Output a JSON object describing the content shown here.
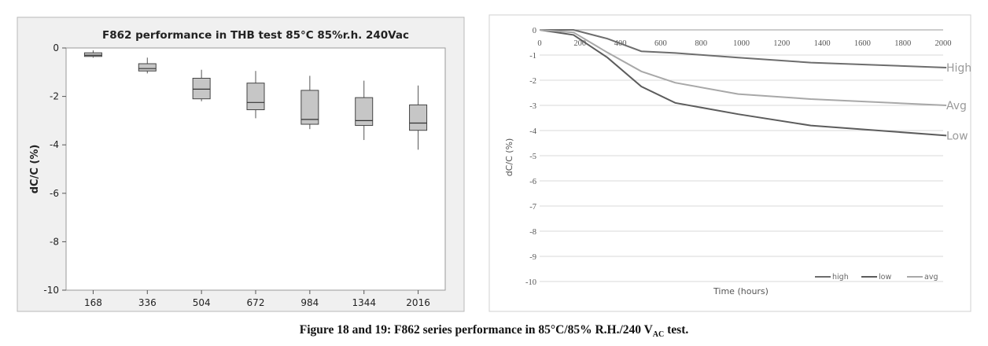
{
  "chart_data": [
    {
      "type": "box",
      "title": "F862 performance in THB test 85°C 85%r.h. 240Vac",
      "ylabel": "dC/C (%)",
      "xlabel": "",
      "ylim": [
        -10,
        0
      ],
      "yticks": [
        0,
        -2,
        -4,
        -6,
        -8,
        -10
      ],
      "yticklabels": [
        "0",
        "-2",
        "-4",
        "-6",
        "-8",
        "-10"
      ],
      "categories": [
        "168",
        "336",
        "504",
        "672",
        "984",
        "1344",
        "2016"
      ],
      "boxes": [
        {
          "whisker_high": -0.1,
          "q3": -0.2,
          "median": -0.3,
          "q1": -0.35,
          "whisker_low": -0.4
        },
        {
          "whisker_high": -0.4,
          "q3": -0.65,
          "median": -0.85,
          "q1": -0.95,
          "whisker_low": -1.05
        },
        {
          "whisker_high": -0.9,
          "q3": -1.25,
          "median": -1.7,
          "q1": -2.1,
          "whisker_low": -2.2
        },
        {
          "whisker_high": -0.95,
          "q3": -1.45,
          "median": -2.25,
          "q1": -2.55,
          "whisker_low": -2.9
        },
        {
          "whisker_high": -1.15,
          "q3": -1.75,
          "median": -2.95,
          "q1": -3.15,
          "whisker_low": -3.35
        },
        {
          "whisker_high": -1.35,
          "q3": -2.05,
          "median": -3.0,
          "q1": -3.2,
          "whisker_low": -3.8
        },
        {
          "whisker_high": -1.55,
          "q3": -2.35,
          "median": -3.1,
          "q1": -3.4,
          "whisker_low": -4.2
        }
      ],
      "grid": false
    },
    {
      "type": "line",
      "title": "",
      "xlabel": "Time (hours)",
      "ylabel": "dC/C (%)",
      "xlim": [
        0,
        2000
      ],
      "ylim": [
        -10,
        0
      ],
      "xticks": [
        0,
        200,
        400,
        600,
        800,
        1000,
        1200,
        1400,
        1600,
        1800,
        2000
      ],
      "xticklabels": [
        "0",
        "200",
        "400",
        "600",
        "800",
        "1000",
        "1200",
        "1400",
        "1600",
        "1800",
        "2000"
      ],
      "yticks": [
        0,
        -1,
        -2,
        -3,
        -4,
        -5,
        -6,
        -7,
        -8,
        -9,
        -10
      ],
      "yticklabels": [
        "0",
        "-1",
        "-2",
        "-3",
        "-4",
        "-5",
        "-6",
        "-7",
        "-8",
        "-9",
        "-10"
      ],
      "grid": true,
      "legend_position": "bottom-right",
      "series": [
        {
          "name": "high",
          "end_label": "High",
          "color": "#6d6d6d",
          "x": [
            0,
            168,
            336,
            504,
            672,
            984,
            1344,
            2016
          ],
          "y": [
            0,
            0,
            -0.35,
            -0.85,
            -0.92,
            -1.1,
            -1.3,
            -1.5
          ]
        },
        {
          "name": "low",
          "end_label": "Low",
          "color": "#5c5c5c",
          "x": [
            0,
            168,
            336,
            504,
            672,
            984,
            1344,
            2016
          ],
          "y": [
            0,
            -0.2,
            -1.1,
            -2.25,
            -2.9,
            -3.35,
            -3.8,
            -4.2
          ]
        },
        {
          "name": "avg",
          "end_label": "Avg",
          "color": "#a8a8a8",
          "x": [
            0,
            168,
            336,
            504,
            672,
            984,
            1344,
            2016
          ],
          "y": [
            0,
            -0.1,
            -0.9,
            -1.65,
            -2.1,
            -2.55,
            -2.75,
            -3.0
          ]
        }
      ]
    }
  ],
  "caption": {
    "before_sub": "Figure 18 and 19: F862 series performance in 85°C/85% R.H./240 V",
    "sub": "AC",
    "after_sub": " test."
  }
}
